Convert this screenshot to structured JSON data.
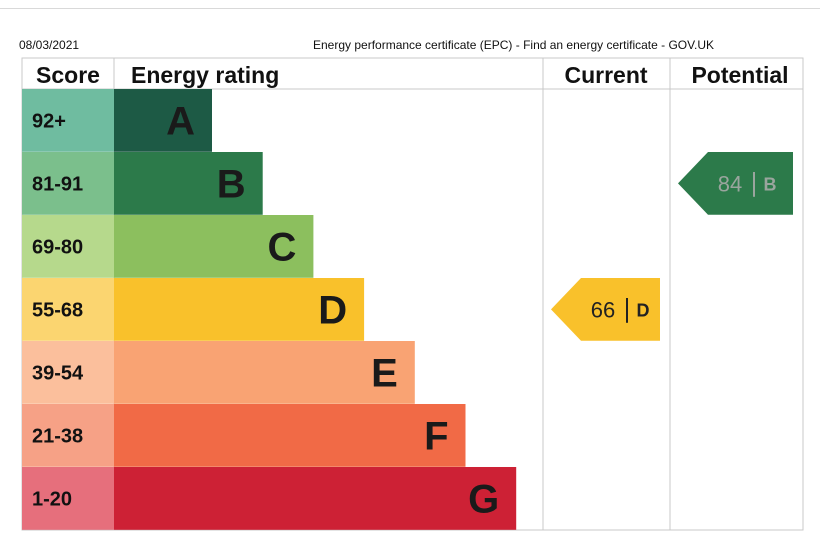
{
  "page": {
    "date": "08/03/2021",
    "document_title": "Energy performance certificate (EPC) - Find an energy certificate - GOV.UK"
  },
  "chart_data": {
    "type": "bar",
    "headers": {
      "score": "Score",
      "rating": "Energy rating",
      "current": "Current",
      "potential": "Potential"
    },
    "bands": [
      {
        "score": "92+",
        "letter": "A",
        "color": "#1d5a45",
        "score_bg": "#6fbca0"
      },
      {
        "score": "81-91",
        "letter": "B",
        "color": "#2c7a4a",
        "score_bg": "#7bbf8c"
      },
      {
        "score": "69-80",
        "letter": "C",
        "color": "#8cbf5e",
        "score_bg": "#b6d98c"
      },
      {
        "score": "55-68",
        "letter": "D",
        "color": "#f9c12b",
        "score_bg": "#fbd570"
      },
      {
        "score": "39-54",
        "letter": "E",
        "color": "#f9a373",
        "score_bg": "#fbbf9c"
      },
      {
        "score": "21-38",
        "letter": "F",
        "color": "#f16a46",
        "score_bg": "#f6a186"
      },
      {
        "score": "1-20",
        "letter": "G",
        "color": "#cd2135",
        "score_bg": "#e66f7c"
      }
    ],
    "current": {
      "value": 66,
      "letter": "D",
      "color": "#f9c12b",
      "text_color": "#222222"
    },
    "potential": {
      "value": 84,
      "letter": "B",
      "color": "#2c7a4a",
      "text_color": "#9aa59e"
    }
  }
}
